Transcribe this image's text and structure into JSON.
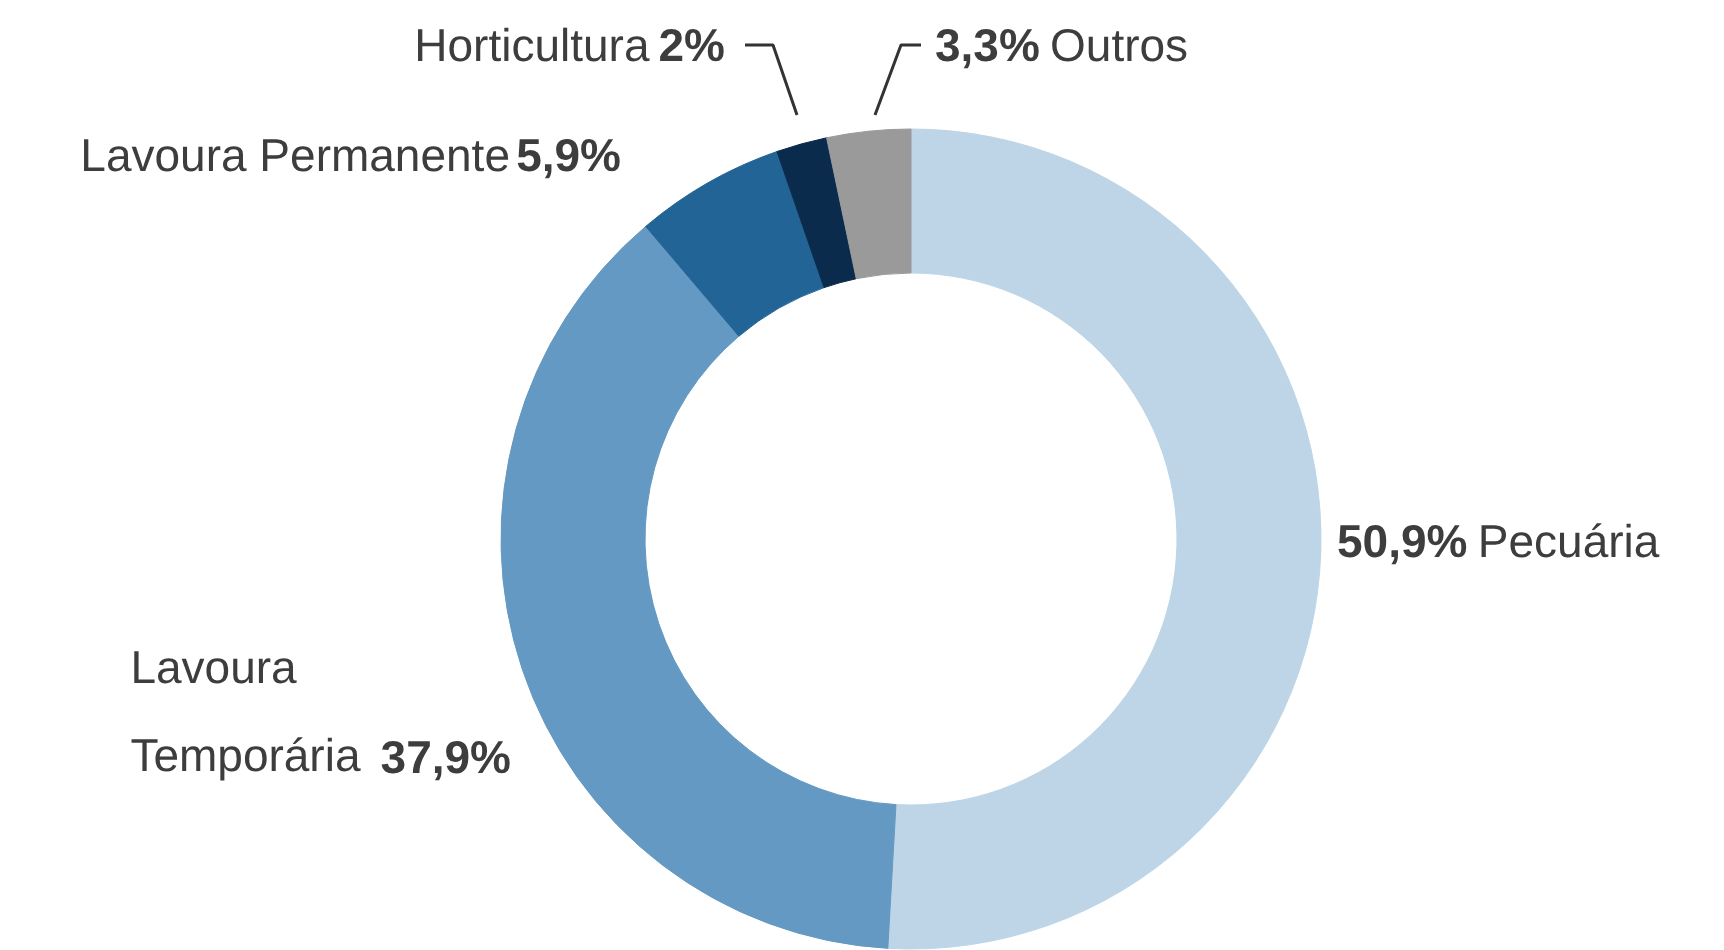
{
  "chart_data": {
    "type": "donut",
    "categories": [
      "Pecuária",
      "Lavoura Temporária",
      "Lavoura Permanente",
      "Horticultura",
      "Outros"
    ],
    "values": [
      50.9,
      37.9,
      5.9,
      2,
      3.3
    ],
    "value_labels": [
      "50,9%",
      "37,9%",
      "5,9%",
      "2%",
      "3,3%"
    ],
    "colors": [
      "#bdd5e6",
      "#6399c2",
      "#236497",
      "#0b2b4c",
      "#9a9a9a"
    ],
    "legend": false
  }
}
